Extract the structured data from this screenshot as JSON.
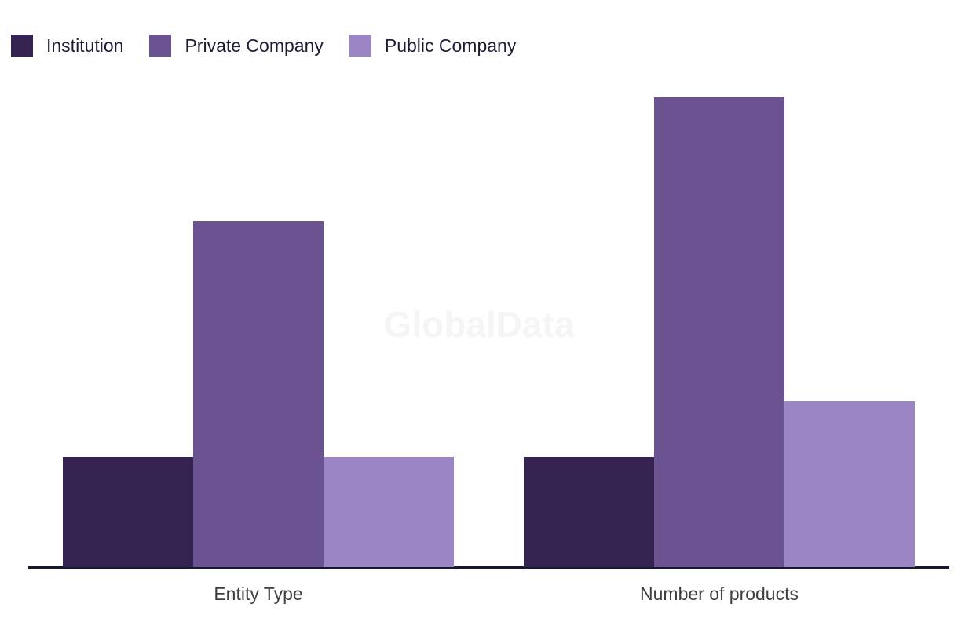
{
  "watermark": {
    "text": "GlobalData"
  },
  "chart_data": {
    "type": "bar",
    "title": "",
    "xlabel": "",
    "ylabel": "",
    "categories": [
      "Entity Type",
      "Number of products"
    ],
    "series": [
      {
        "name": "Institution",
        "color": "#342350",
        "values": [
          1.0,
          1.0
        ]
      },
      {
        "name": "Private Company",
        "color": "#6A5390",
        "values": [
          3.14,
          4.27
        ]
      },
      {
        "name": "Public Company",
        "color": "#9C85C4",
        "values": [
          1.0,
          1.51
        ]
      }
    ],
    "value_unit": "relative (no y-axis shown; Institution bar = 1.0)",
    "ylim": [
      0,
      4.45
    ],
    "y_axis_visible": false,
    "grid": false,
    "legend_position": "top-left",
    "colors": {
      "axis_line": "#171A2E",
      "category_label": "#3E3E3E",
      "legend_text": "#1E1D35",
      "watermark": "#F5F5F6",
      "background": "#FFFFFF"
    }
  }
}
